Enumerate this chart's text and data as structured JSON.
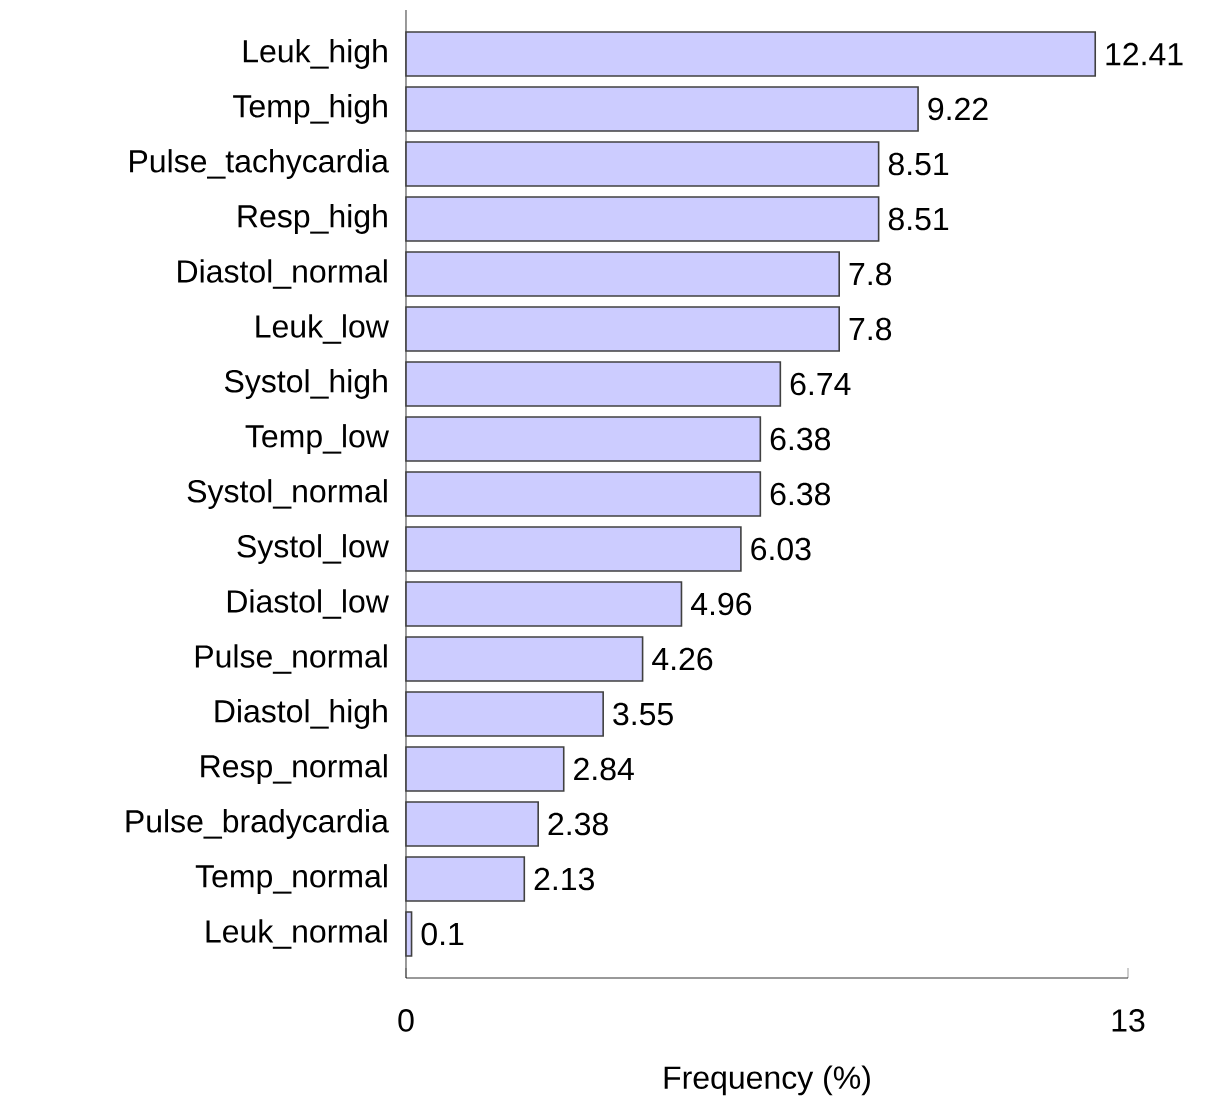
{
  "chart_data": {
    "type": "bar",
    "orientation": "horizontal",
    "xlabel": "Frequency (%)",
    "categories": [
      "Leuk_high",
      "Temp_high",
      "Pulse_tachycardia",
      "Resp_high",
      "Diastol_normal",
      "Leuk_low",
      "Systol_high",
      "Temp_low",
      "Systol_normal",
      "Systol_low",
      "Diastol_low",
      "Pulse_normal",
      "Diastol_high",
      "Resp_normal",
      "Pulse_bradycardia",
      "Temp_normal",
      "Leuk_normal"
    ],
    "values": [
      12.41,
      9.22,
      8.51,
      8.51,
      7.8,
      7.8,
      6.74,
      6.38,
      6.38,
      6.03,
      4.96,
      4.26,
      3.55,
      2.84,
      2.38,
      2.13,
      0.1
    ],
    "color": "#ccccff",
    "xlim": [
      0,
      13
    ],
    "xticks": [
      0,
      13
    ],
    "data_labels": true
  }
}
